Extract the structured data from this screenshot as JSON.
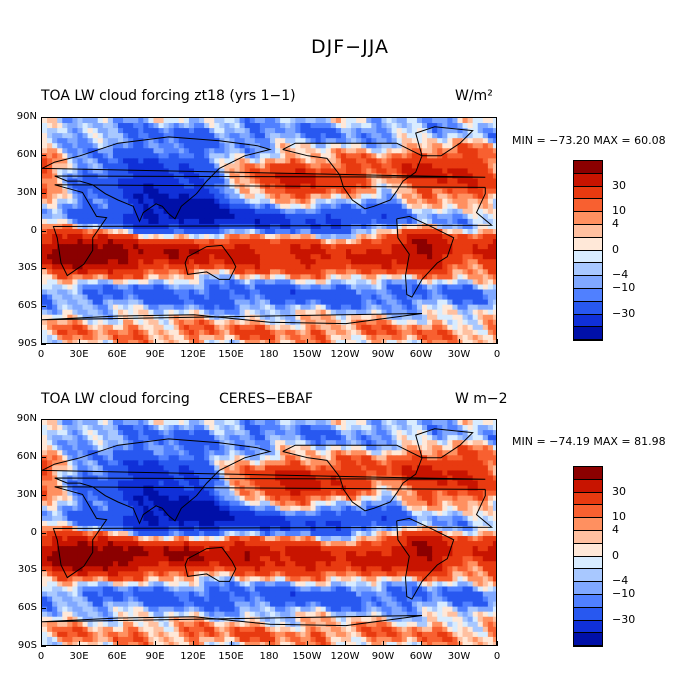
{
  "figure": {
    "title": "DJF−JJA"
  },
  "chart_data": [
    {
      "type": "heatmap",
      "title_left": "TOA LW cloud forcing zt18 (yrs 1−1)",
      "title_center": "",
      "units": "W/m²",
      "stats": "MIN = −73.20  MAX =  60.08",
      "x_ticks": [
        "0",
        "30E",
        "60E",
        "90E",
        "120E",
        "150E",
        "180",
        "150W",
        "120W",
        "90W",
        "60W",
        "30W",
        "0"
      ],
      "y_ticks": [
        "90N",
        "60N",
        "30N",
        "0",
        "30S",
        "60S",
        "90S"
      ],
      "colorbar_labels": [
        "30",
        "10",
        "4",
        "0",
        "−4",
        "−10",
        "−30"
      ],
      "colorbar_colors": [
        "#8b0000",
        "#c81400",
        "#e83a10",
        "#f86030",
        "#ff9060",
        "#ffc0a0",
        "#ffe8d8",
        "#d8ecff",
        "#a8c8ff",
        "#80a8ff",
        "#5080ff",
        "#2858f0",
        "#1030d8",
        "#0010a8"
      ],
      "variant": "model"
    },
    {
      "type": "heatmap",
      "title_left": "TOA LW cloud forcing",
      "title_center": "CERES−EBAF",
      "units": "W m−2",
      "stats": "MIN = −74.19  MAX =  81.98",
      "x_ticks": [
        "0",
        "30E",
        "60E",
        "90E",
        "120E",
        "150E",
        "180",
        "150W",
        "120W",
        "90W",
        "60W",
        "30W",
        "0"
      ],
      "y_ticks": [
        "90N",
        "60N",
        "30N",
        "0",
        "30S",
        "60S",
        "90S"
      ],
      "colorbar_labels": [
        "30",
        "10",
        "4",
        "0",
        "−4",
        "−10",
        "−30"
      ],
      "colorbar_colors": [
        "#8b0000",
        "#c81400",
        "#e83a10",
        "#f86030",
        "#ff9060",
        "#ffc0a0",
        "#ffe8d8",
        "#d8ecff",
        "#a8c8ff",
        "#80a8ff",
        "#5080ff",
        "#2858f0",
        "#1030d8",
        "#0010a8"
      ],
      "variant": "obs"
    }
  ]
}
